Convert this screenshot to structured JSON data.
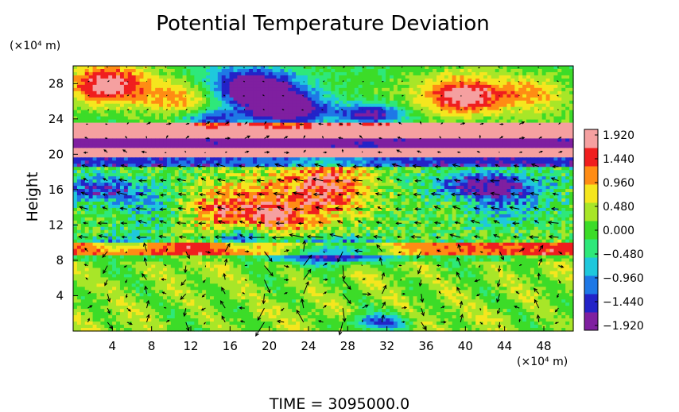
{
  "chart_data": {
    "type": "heatmap",
    "title": "Potential Temperature Deviation",
    "ylabel": "Height",
    "xlabel": "",
    "x_unit": "(×10⁴ m)",
    "y_unit": "(×10⁴ m)",
    "x_ticks": [
      4,
      8,
      12,
      16,
      20,
      24,
      28,
      32,
      36,
      40,
      44,
      48
    ],
    "y_ticks": [
      4,
      8,
      12,
      16,
      20,
      24,
      28
    ],
    "xlim": [
      0,
      51
    ],
    "ylim": [
      0,
      30
    ],
    "colorbar": {
      "ticks": [
        "1.920",
        "1.440",
        "0.960",
        "0.480",
        "0.000",
        "−0.480",
        "−0.960",
        "−1.440",
        "−1.920"
      ],
      "range": [
        -2.1,
        2.1
      ],
      "colors": [
        "#7f1fa0",
        "#2323c8",
        "#1e78e6",
        "#1fc8dc",
        "#2ee87a",
        "#3cdc28",
        "#a8e628",
        "#f5e61e",
        "#ff8c14",
        "#f01e1e",
        "#f5a0a0"
      ]
    },
    "vectors": "wind-vector-overlay",
    "footer": "TIME  =  3095000.0"
  }
}
